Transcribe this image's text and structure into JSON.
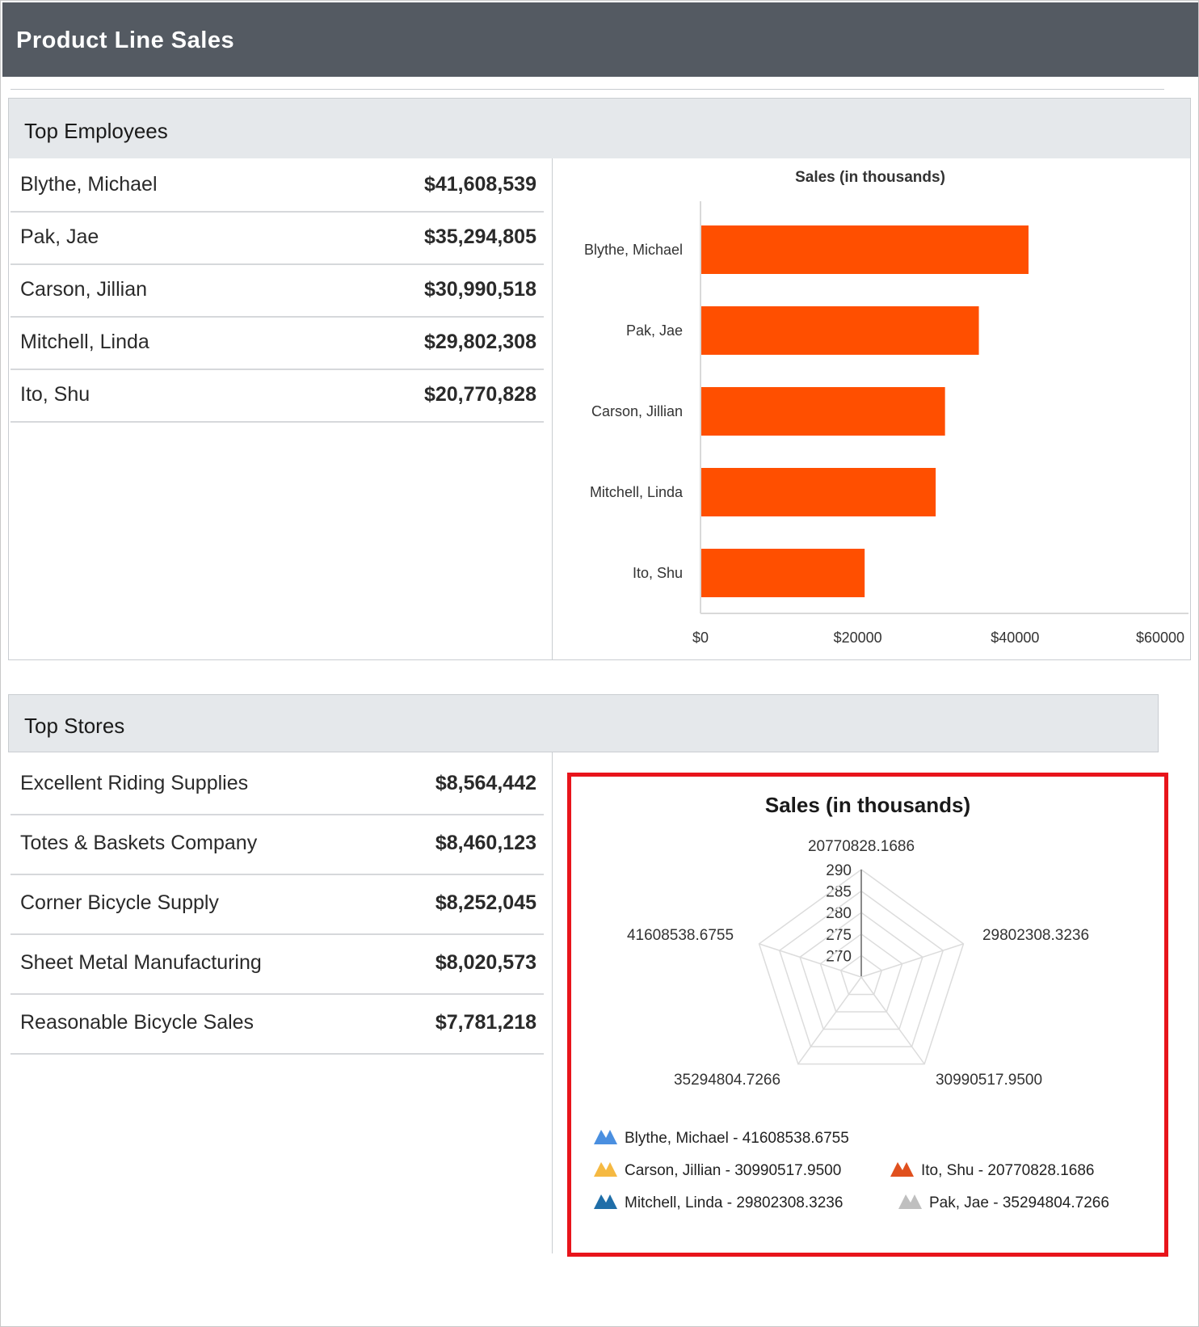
{
  "app": {
    "title": "Product Line Sales"
  },
  "employees": {
    "title": "Top Employees",
    "rows": [
      {
        "name": "Blythe, Michael",
        "value": "$41,608,539"
      },
      {
        "name": "Pak, Jae",
        "value": "$35,294,805"
      },
      {
        "name": "Carson, Jillian",
        "value": "$30,990,518"
      },
      {
        "name": "Mitchell, Linda",
        "value": "$29,802,308"
      },
      {
        "name": "Ito, Shu",
        "value": "$20,770,828"
      }
    ]
  },
  "stores": {
    "title": "Top Stores",
    "rows": [
      {
        "name": "Excellent Riding Supplies",
        "value": "$8,564,442"
      },
      {
        "name": "Totes & Baskets Company",
        "value": "$8,460,123"
      },
      {
        "name": "Corner Bicycle Supply",
        "value": "$8,252,045"
      },
      {
        "name": "Sheet Metal Manufacturing",
        "value": "$8,020,573"
      },
      {
        "name": "Reasonable Bicycle Sales",
        "value": "$7,781,218"
      }
    ]
  },
  "chart_data": [
    {
      "type": "bar",
      "orientation": "horizontal",
      "title": "Sales (in thousands)",
      "categories": [
        "Blythe, Michael",
        "Pak, Jae",
        "Carson, Jillian",
        "Mitchell, Linda",
        "Ito, Shu"
      ],
      "values": [
        41609,
        35295,
        30991,
        29802,
        20771
      ],
      "xlim": [
        0,
        60000
      ],
      "ticks": [
        "$0",
        "$20000",
        "$40000",
        "$60000"
      ],
      "tick_values": [
        0,
        20000,
        40000,
        60000
      ],
      "color": "#ff4f00",
      "grid": false
    },
    {
      "type": "radar",
      "title": "Sales (in thousands)",
      "axis_labels": [
        "20770828.1686",
        "29802308.3236",
        "30990517.9500",
        "35294804.7266",
        "41608538.6755"
      ],
      "radial_ticks": [
        "270",
        "275",
        "280",
        "285",
        "290"
      ],
      "radial_tick_values": [
        270,
        275,
        280,
        285,
        290
      ],
      "rlim": [
        265,
        290
      ],
      "grid": true,
      "legend_position": "bottom",
      "legend": [
        {
          "label": "Blythe, Michael - 41608538.6755",
          "color": "#4a8fe0"
        },
        {
          "label": "Carson, Jillian - 30990517.9500",
          "color": "#f5b942"
        },
        {
          "label": "Ito, Shu - 20770828.1686",
          "color": "#e0501e"
        },
        {
          "label": "Mitchell, Linda - 29802308.3236",
          "color": "#1f6ea8"
        },
        {
          "label": "Pak, Jae - 35294804.7266",
          "color": "#bfbfbf"
        }
      ]
    }
  ]
}
